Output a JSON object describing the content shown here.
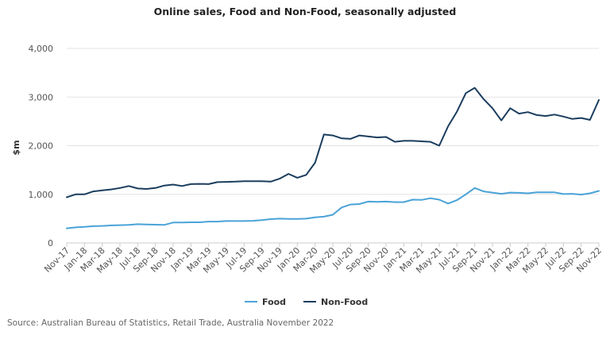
{
  "chart_data": {
    "type": "line",
    "title": "Online sales, Food and Non-Food, seasonally adjusted",
    "ylabel": "$m",
    "xlabel": "",
    "ylim": [
      0,
      4000
    ],
    "yticks": [
      0,
      1000,
      2000,
      3000,
      4000
    ],
    "ytick_labels": [
      "0",
      "1,000",
      "2,000",
      "3,000",
      "4,000"
    ],
    "x": [
      "Nov-17",
      "Dec-17",
      "Jan-18",
      "Feb-18",
      "Mar-18",
      "Apr-18",
      "May-18",
      "Jun-18",
      "Jul-18",
      "Aug-18",
      "Sep-18",
      "Oct-18",
      "Nov-18",
      "Dec-18",
      "Jan-19",
      "Feb-19",
      "Mar-19",
      "Apr-19",
      "May-19",
      "Jun-19",
      "Jul-19",
      "Aug-19",
      "Sep-19",
      "Oct-19",
      "Nov-19",
      "Dec-19",
      "Jan-20",
      "Feb-20",
      "Mar-20",
      "Apr-20",
      "May-20",
      "Jun-20",
      "Jul-20",
      "Aug-20",
      "Sep-20",
      "Oct-20",
      "Nov-20",
      "Dec-20",
      "Jan-21",
      "Feb-21",
      "Mar-21",
      "Apr-21",
      "May-21",
      "Jun-21",
      "Jul-21",
      "Aug-21",
      "Sep-21",
      "Oct-21",
      "Nov-21",
      "Dec-21",
      "Jan-22",
      "Feb-22",
      "Mar-22",
      "Apr-22",
      "May-22",
      "Jun-22",
      "Jul-22",
      "Aug-22",
      "Sep-22",
      "Oct-22",
      "Nov-22"
    ],
    "x_tick_labels": [
      "Nov-17",
      "Jan-18",
      "Mar-18",
      "May-18",
      "Jul-18",
      "Sep-18",
      "Nov-18",
      "Jan-19",
      "Mar-19",
      "May-19",
      "Jul-19",
      "Sep-19",
      "Nov-19",
      "Jan-20",
      "Mar-20",
      "May-20",
      "Jul-20",
      "Sep-20",
      "Nov-20",
      "Jan-21",
      "Mar-21",
      "May-21",
      "Jul-21",
      "Sep-21",
      "Nov-21",
      "Jan-22",
      "Mar-22",
      "May-22",
      "Jul-22",
      "Sep-22",
      "Nov-22"
    ],
    "series": [
      {
        "name": "Food",
        "color": "#4aa3d8",
        "values": [
          300,
          320,
          330,
          345,
          350,
          360,
          365,
          370,
          385,
          380,
          375,
          370,
          420,
          420,
          425,
          425,
          440,
          440,
          450,
          450,
          450,
          455,
          470,
          490,
          500,
          495,
          495,
          500,
          525,
          540,
          580,
          730,
          790,
          800,
          850,
          845,
          850,
          840,
          840,
          890,
          885,
          920,
          890,
          810,
          880,
          1000,
          1130,
          1060,
          1035,
          1010,
          1035,
          1030,
          1020,
          1040,
          1040,
          1040,
          1005,
          1010,
          995,
          1020,
          1070
        ]
      },
      {
        "name": "Non-Food",
        "color": "#1b3d5e",
        "values": [
          940,
          1000,
          1000,
          1060,
          1080,
          1100,
          1130,
          1170,
          1120,
          1110,
          1130,
          1180,
          1200,
          1170,
          1210,
          1215,
          1210,
          1250,
          1255,
          1260,
          1270,
          1270,
          1270,
          1260,
          1320,
          1420,
          1340,
          1400,
          1650,
          2230,
          2210,
          2150,
          2140,
          2210,
          2190,
          2170,
          2180,
          2080,
          2100,
          2100,
          2090,
          2080,
          2000,
          2400,
          2700,
          3080,
          3190,
          2960,
          2770,
          2520,
          2770,
          2660,
          2690,
          2630,
          2610,
          2640,
          2600,
          2550,
          2570,
          2530,
          2940
        ]
      }
    ],
    "legend": {
      "position": "bottom"
    },
    "grid": true
  },
  "source_note": "Source: Australian Bureau of Statistics, Retail Trade, Australia November 2022"
}
